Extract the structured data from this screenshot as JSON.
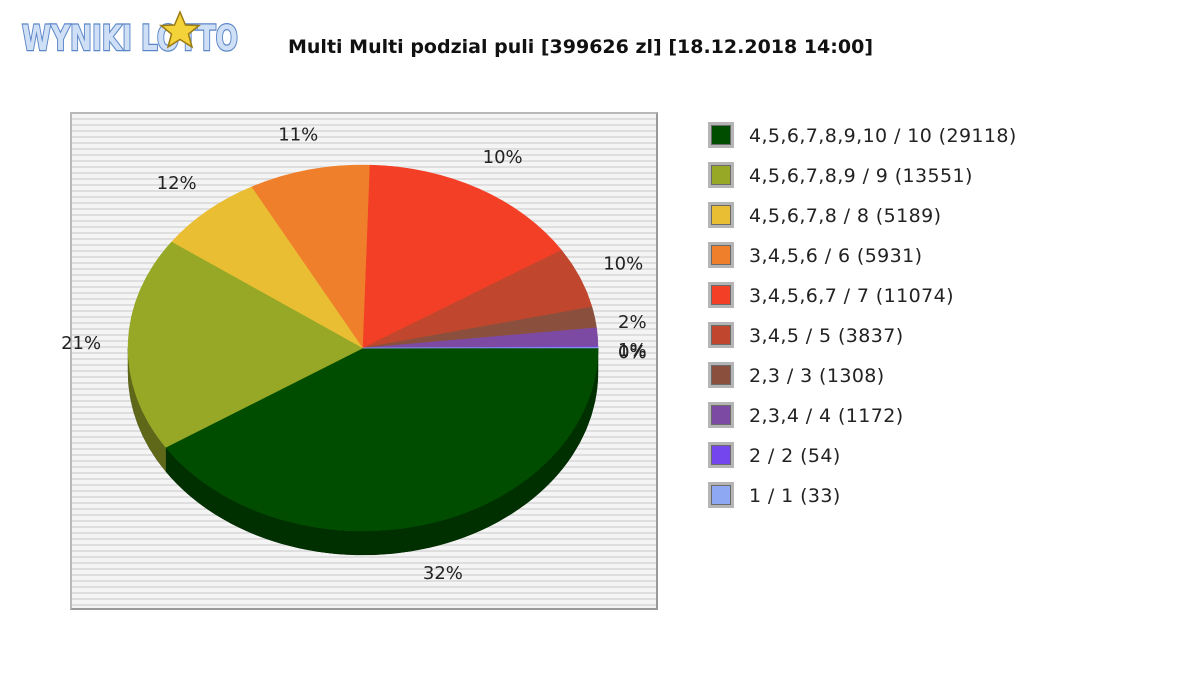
{
  "logo": {
    "text": "WYNIKI LOTTO"
  },
  "chart_data": {
    "type": "pie",
    "title": "Multi Multi podzial puli [399626 zl] [18.12.2018 14:00]",
    "slices": [
      {
        "label": "4,5,6,7,8,9,10 / 10 (29118)",
        "value": 29118,
        "percent_label": "32%",
        "color": "#004d00"
      },
      {
        "label": "4,5,6,7,8,9 / 9 (13551)",
        "value": 13551,
        "percent_label": "21%",
        "color": "#97a826"
      },
      {
        "label": "4,5,6,7,8 / 8 (5189)",
        "value": 5189,
        "percent_label": "12%",
        "color": "#e9be33"
      },
      {
        "label": "3,4,5,6 / 6 (5931)",
        "value": 5931,
        "percent_label": "11%",
        "color": "#ef7f2b"
      },
      {
        "label": "3,4,5,6,7 / 7 (11074)",
        "value": 11074,
        "percent_label": "10%",
        "color": "#f23f25"
      },
      {
        "label": "3,4,5 / 5 (3837)",
        "value": 3837,
        "percent_label": "10%",
        "color": "#c0472e"
      },
      {
        "label": "2,3 / 3 (1308)",
        "value": 1308,
        "percent_label": "2%",
        "color": "#8a4f3d"
      },
      {
        "label": "2,3,4 / 4 (1172)",
        "value": 1172,
        "percent_label": "1%",
        "color": "#7d4aa3"
      },
      {
        "label": "2 / 2 (54)",
        "value": 54,
        "percent_label": "0%",
        "color": "#7446ee"
      },
      {
        "label": "1 / 1 (33)",
        "value": 33,
        "percent_label": "0%",
        "color": "#8fa8f4"
      }
    ],
    "legend_position": "right",
    "grid": false
  }
}
